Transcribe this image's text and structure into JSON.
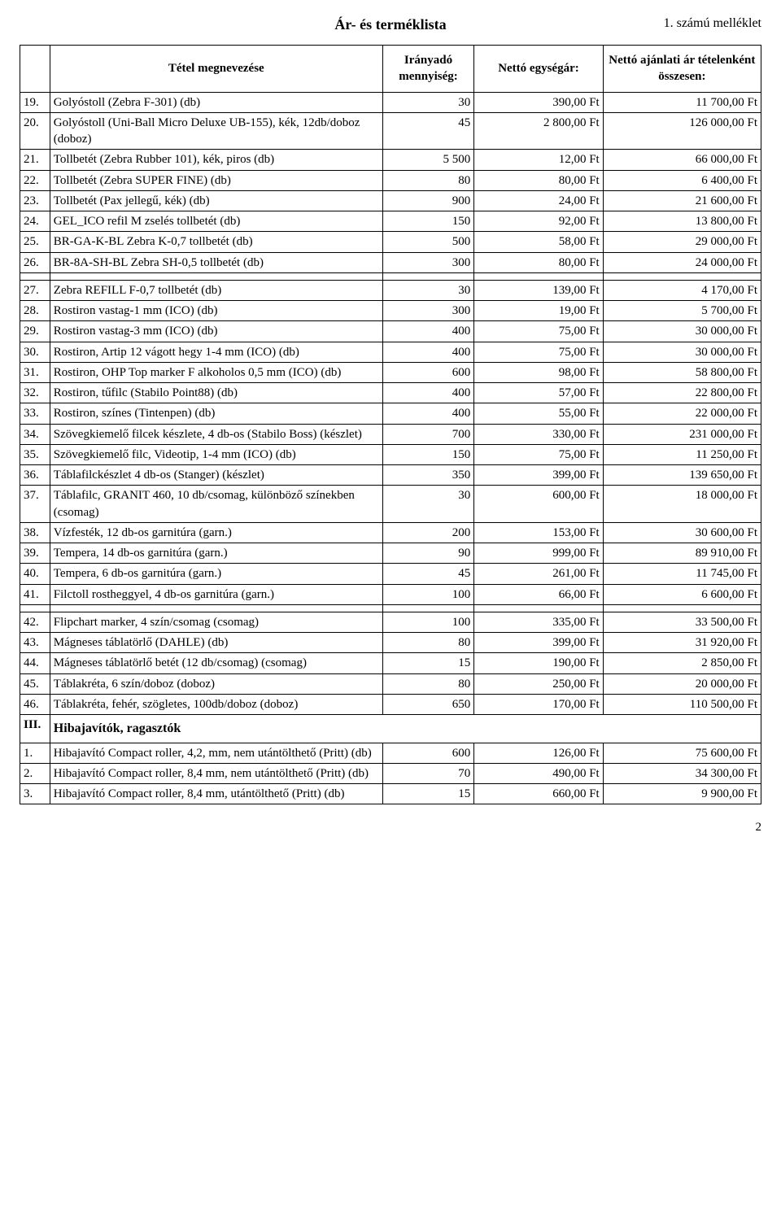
{
  "header": {
    "title": "Ár- és terméklista",
    "attachment": "1. számú melléklet"
  },
  "columns": {
    "name": "Tétel megnevezése",
    "qty": "Irányadó mennyiség:",
    "unit": "Nettó egységár:",
    "total": "Nettó ajánlati ár tételenként összesen:"
  },
  "section_label": "Hibajavítók, ragasztók",
  "section_num": "III.",
  "page_number": "2",
  "rows_a": [
    {
      "n": "19.",
      "name": "Golyóstoll (Zebra F-301)  (db)",
      "q": "30",
      "u": "390,00 Ft",
      "t": "11 700,00 Ft"
    },
    {
      "n": "20.",
      "name": "Golyóstoll (Uni-Ball Micro Deluxe UB-155), kék, 12db/doboz   (doboz)",
      "q": "45",
      "u": "2 800,00 Ft",
      "t": "126 000,00 Ft"
    },
    {
      "n": "21.",
      "name": "Tollbetét (Zebra Rubber 101), kék, piros  (db)",
      "q": "5 500",
      "u": "12,00 Ft",
      "t": "66 000,00 Ft"
    },
    {
      "n": "22.",
      "name": "Tollbetét (Zebra SUPER FINE)  (db)",
      "q": "80",
      "u": "80,00 Ft",
      "t": "6 400,00 Ft"
    },
    {
      "n": "23.",
      "name": "Tollbetét (Pax jellegű, kék)  (db)",
      "q": "900",
      "u": "24,00 Ft",
      "t": "21 600,00 Ft"
    },
    {
      "n": "24.",
      "name": "GEL_ICO refil M zselés tollbetét  (db)",
      "q": "150",
      "u": "92,00 Ft",
      "t": "13 800,00 Ft"
    },
    {
      "n": "25.",
      "name": "BR-GA-K-BL Zebra K-0,7 tollbetét  (db)",
      "q": "500",
      "u": "58,00 Ft",
      "t": "29 000,00 Ft"
    },
    {
      "n": "26.",
      "name": "BR-8A-SH-BL Zebra SH-0,5 tollbetét  (db)",
      "q": "300",
      "u": "80,00 Ft",
      "t": "24 000,00 Ft"
    }
  ],
  "rows_b": [
    {
      "n": "27.",
      "name": "Zebra REFILL  F-0,7  tollbetét   (db)",
      "q": "30",
      "u": "139,00 Ft",
      "t": "4 170,00 Ft"
    },
    {
      "n": "28.",
      "name": "Rostiron vastag-1 mm (ICO)  (db)",
      "q": "300",
      "u": "19,00 Ft",
      "t": "5 700,00 Ft"
    },
    {
      "n": "29.",
      "name": "Rostiron vastag-3 mm (ICO) (db)",
      "q": "400",
      "u": "75,00 Ft",
      "t": "30 000,00 Ft"
    },
    {
      "n": "30.",
      "name": "Rostiron, Artip 12 vágott hegy 1-4 mm (ICO)  (db)",
      "q": "400",
      "u": "75,00 Ft",
      "t": "30 000,00 Ft"
    },
    {
      "n": "31.",
      "name": "Rostiron, OHP Top marker F alkoholos 0,5 mm (ICO) (db)",
      "q": "600",
      "u": "98,00 Ft",
      "t": "58 800,00 Ft"
    },
    {
      "n": "32.",
      "name": "Rostiron, tűfilc (Stabilo Point88)  (db)",
      "q": "400",
      "u": "57,00 Ft",
      "t": "22 800,00 Ft"
    },
    {
      "n": "33.",
      "name": "Rostiron, színes (Tintenpen)  (db)",
      "q": "400",
      "u": "55,00 Ft",
      "t": "22 000,00 Ft"
    },
    {
      "n": "34.",
      "name": "Szövegkiemelő filcek készlete, 4 db-os (Stabilo Boss) (készlet)",
      "q": "700",
      "u": "330,00 Ft",
      "t": "231 000,00 Ft"
    },
    {
      "n": "35.",
      "name": "Szövegkiemelő filc, Videotip, 1-4 mm (ICO)  (db)",
      "q": "150",
      "u": "75,00 Ft",
      "t": "11 250,00 Ft"
    },
    {
      "n": "36.",
      "name": "Táblafilckészlet 4 db-os (Stanger)  (készlet)",
      "q": "350",
      "u": "399,00 Ft",
      "t": "139 650,00 Ft"
    },
    {
      "n": "37.",
      "name": "Táblafilc, GRANIT 460, 10 db/csomag, különböző színekben     (csomag)",
      "q": "30",
      "u": "600,00 Ft",
      "t": "18 000,00 Ft"
    },
    {
      "n": "38.",
      "name": "Vízfesték, 12 db-os garnitúra   (garn.)",
      "q": "200",
      "u": "153,00 Ft",
      "t": "30 600,00 Ft"
    },
    {
      "n": "39.",
      "name": "Tempera, 14 db-os garnitúra   (garn.)",
      "q": "90",
      "u": "999,00 Ft",
      "t": "89 910,00 Ft"
    },
    {
      "n": "40.",
      "name": "Tempera, 6 db-os garnitúra   (garn.)",
      "q": "45",
      "u": "261,00 Ft",
      "t": "11 745,00 Ft"
    },
    {
      "n": "41.",
      "name": "Filctoll rostheggyel, 4 db-os garnitúra (garn.)",
      "q": "100",
      "u": "66,00 Ft",
      "t": "6 600,00 Ft"
    }
  ],
  "rows_c": [
    {
      "n": "42.",
      "name": "Flipchart marker,  4 szín/csomag   (csomag)",
      "q": "100",
      "u": "335,00 Ft",
      "t": "33 500,00 Ft"
    },
    {
      "n": "43.",
      "name": "Mágneses táblatörlő  (DAHLE)  (db)",
      "q": "80",
      "u": "399,00 Ft",
      "t": "31 920,00 Ft"
    },
    {
      "n": "44.",
      "name": "Mágneses táblatörlő betét (12 db/csomag) (csomag)",
      "q": "15",
      "u": "190,00 Ft",
      "t": "2 850,00 Ft"
    },
    {
      "n": "45.",
      "name": "Táblakréta, 6 szín/doboz   (doboz)",
      "q": "80",
      "u": "250,00 Ft",
      "t": "20 000,00 Ft"
    },
    {
      "n": "46.",
      "name": "Táblakréta,  fehér, szögletes, 100db/doboz  (doboz)",
      "q": "650",
      "u": "170,00 Ft",
      "t": "110 500,00 Ft"
    }
  ],
  "rows_d": [
    {
      "n": "1.",
      "name": "Hibajavító Compact roller, 4,2, mm, nem utántölthető (Pritt) (db)",
      "q": "600",
      "u": "126,00 Ft",
      "t": "75 600,00 Ft"
    },
    {
      "n": "2.",
      "name": "Hibajavító Compact roller, 8,4 mm, nem utántölthető (Pritt) (db)",
      "q": "70",
      "u": "490,00 Ft",
      "t": "34 300,00 Ft"
    },
    {
      "n": "3.",
      "name": "Hibajavító Compact roller, 8,4 mm, utántölthető (Pritt) (db)",
      "q": "15",
      "u": "660,00 Ft",
      "t": "9 900,00 Ft"
    }
  ]
}
